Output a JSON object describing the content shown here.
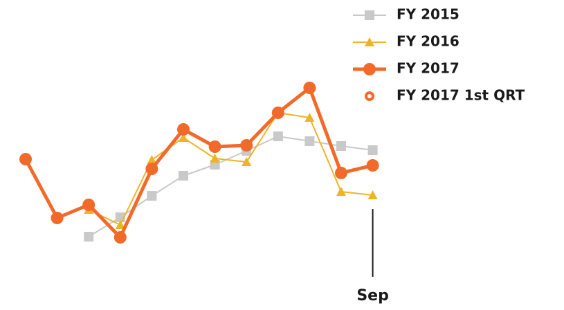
{
  "chart_data": {
    "type": "line",
    "categories": [
      null,
      null,
      null,
      null,
      null,
      null,
      null,
      null,
      null,
      null,
      null,
      "Sep"
    ],
    "ylim": [
      0,
      300
    ],
    "legend": "top-right",
    "series": [
      {
        "name": "FY 2015",
        "color": "#c9c9c9",
        "marker": "square",
        "line": true,
        "width": 2,
        "values": [
          null,
          null,
          58,
          86,
          117,
          146,
          162,
          182,
          203,
          196,
          189,
          183
        ]
      },
      {
        "name": "FY 2016",
        "color": "#f0b323",
        "marker": "triangle",
        "line": true,
        "width": 2,
        "values": [
          null,
          null,
          97,
          75,
          169,
          201,
          171,
          166,
          237,
          230,
          123,
          118
        ]
      },
      {
        "name": "FY 2017",
        "color": "#f26a2a",
        "marker": "circle",
        "line": true,
        "width": 5,
        "values": [
          170,
          85,
          104,
          57,
          156,
          213,
          188,
          190,
          237,
          273,
          150,
          161
        ]
      },
      {
        "name": "FY 2017 1st QRT",
        "color": "#f26a2a",
        "marker": "ring",
        "line": false,
        "width": 0,
        "values": [
          null,
          null,
          102,
          null,
          null,
          null,
          null,
          null,
          null,
          null,
          null,
          null
        ]
      }
    ]
  }
}
